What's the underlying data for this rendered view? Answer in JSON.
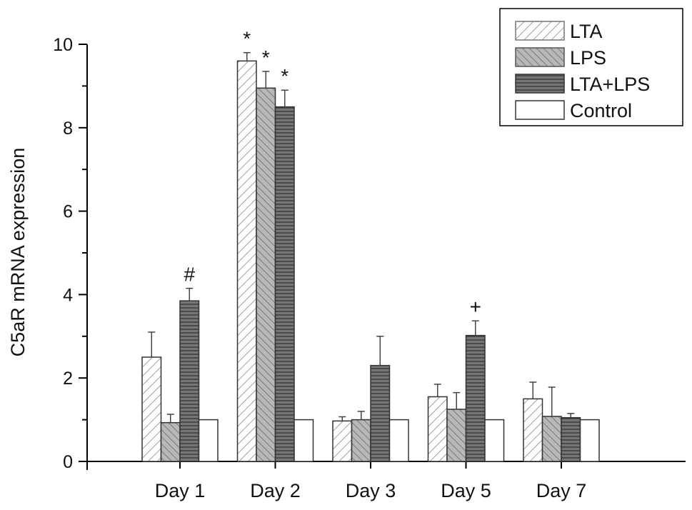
{
  "chart_data": {
    "type": "bar",
    "title": "",
    "xlabel": "",
    "ylabel": "C5aR mRNA expression",
    "ylim": [
      0,
      10
    ],
    "yticks": [
      0,
      2,
      4,
      6,
      8,
      10
    ],
    "categories": [
      "Day 1",
      "Day 2",
      "Day 3",
      "Day 5",
      "Day 7"
    ],
    "legend_position": "top-right",
    "grid": false,
    "series": [
      {
        "name": "LTA",
        "pattern": "diagonal-forward",
        "color": "#ffffff",
        "stroke": "#777777",
        "values": [
          2.5,
          9.6,
          0.97,
          1.55,
          1.5
        ],
        "errors": [
          0.6,
          0.2,
          0.1,
          0.3,
          0.4
        ]
      },
      {
        "name": "LPS",
        "pattern": "diagonal-back",
        "color": "#b4b4b4",
        "stroke": "#555555",
        "values": [
          0.93,
          8.95,
          1.0,
          1.25,
          1.08
        ],
        "errors": [
          0.2,
          0.4,
          0.2,
          0.4,
          0.7
        ]
      },
      {
        "name": "LTA+LPS",
        "pattern": "horizontal",
        "color": "#707070",
        "stroke": "#333333",
        "values": [
          3.85,
          8.5,
          2.3,
          3.02,
          1.05
        ],
        "errors": [
          0.3,
          0.4,
          0.7,
          0.35,
          0.1
        ]
      },
      {
        "name": "Control",
        "pattern": "none",
        "color": "#ffffff",
        "stroke": "#333333",
        "values": [
          1.0,
          1.0,
          1.0,
          1.0,
          1.0
        ],
        "errors": [
          0,
          0,
          0,
          0,
          0
        ]
      }
    ],
    "annotations": [
      {
        "text": "#",
        "category": 0,
        "series": 2
      },
      {
        "text": "*",
        "category": 1,
        "series": 0
      },
      {
        "text": "*",
        "category": 1,
        "series": 1
      },
      {
        "text": "*",
        "category": 1,
        "series": 2
      },
      {
        "text": "+",
        "category": 3,
        "series": 2
      }
    ]
  }
}
